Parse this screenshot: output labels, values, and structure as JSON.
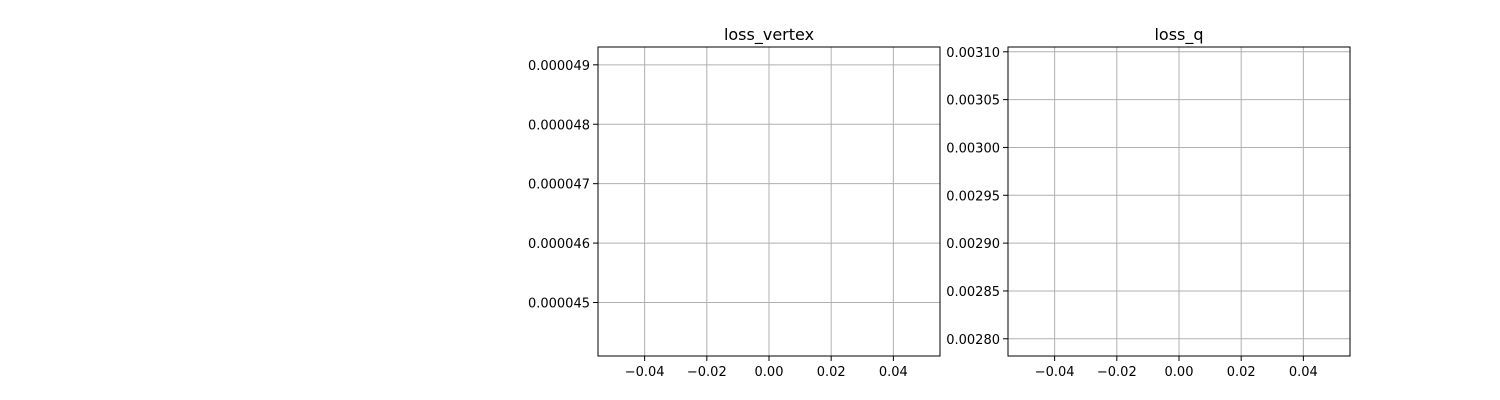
{
  "figure": {
    "background": "#ffffff",
    "grid_color": "#b0b0b0",
    "axes_color": "#000000"
  },
  "chart_data": [
    {
      "type": "line",
      "title": "loss_vertex",
      "xlabel": "",
      "ylabel": "",
      "xlim": [
        -0.055,
        0.055
      ],
      "ylim": [
        4.41e-05,
        4.93e-05
      ],
      "xticks": [
        -0.04,
        -0.02,
        0.0,
        0.02,
        0.04
      ],
      "xtick_labels": [
        "−0.04",
        "−0.02",
        "0.00",
        "0.02",
        "0.04"
      ],
      "yticks": [
        4.5e-05,
        4.6e-05,
        4.7e-05,
        4.8e-05,
        4.9e-05
      ],
      "ytick_labels": [
        "0.000045",
        "0.000046",
        "0.000047",
        "0.000048",
        "0.000049"
      ],
      "grid": true,
      "series": []
    },
    {
      "type": "line",
      "title": "loss_q",
      "xlabel": "",
      "ylabel": "",
      "xlim": [
        -0.055,
        0.055
      ],
      "ylim": [
        0.002782,
        0.003105
      ],
      "xticks": [
        -0.04,
        -0.02,
        0.0,
        0.02,
        0.04
      ],
      "xtick_labels": [
        "−0.04",
        "−0.02",
        "0.00",
        "0.02",
        "0.04"
      ],
      "yticks": [
        0.0028,
        0.00285,
        0.0029,
        0.00295,
        0.003,
        0.00305,
        0.0031
      ],
      "ytick_labels": [
        "0.00280",
        "0.00285",
        "0.00290",
        "0.00295",
        "0.00300",
        "0.00305",
        "0.00310"
      ],
      "grid": true,
      "series": []
    }
  ]
}
